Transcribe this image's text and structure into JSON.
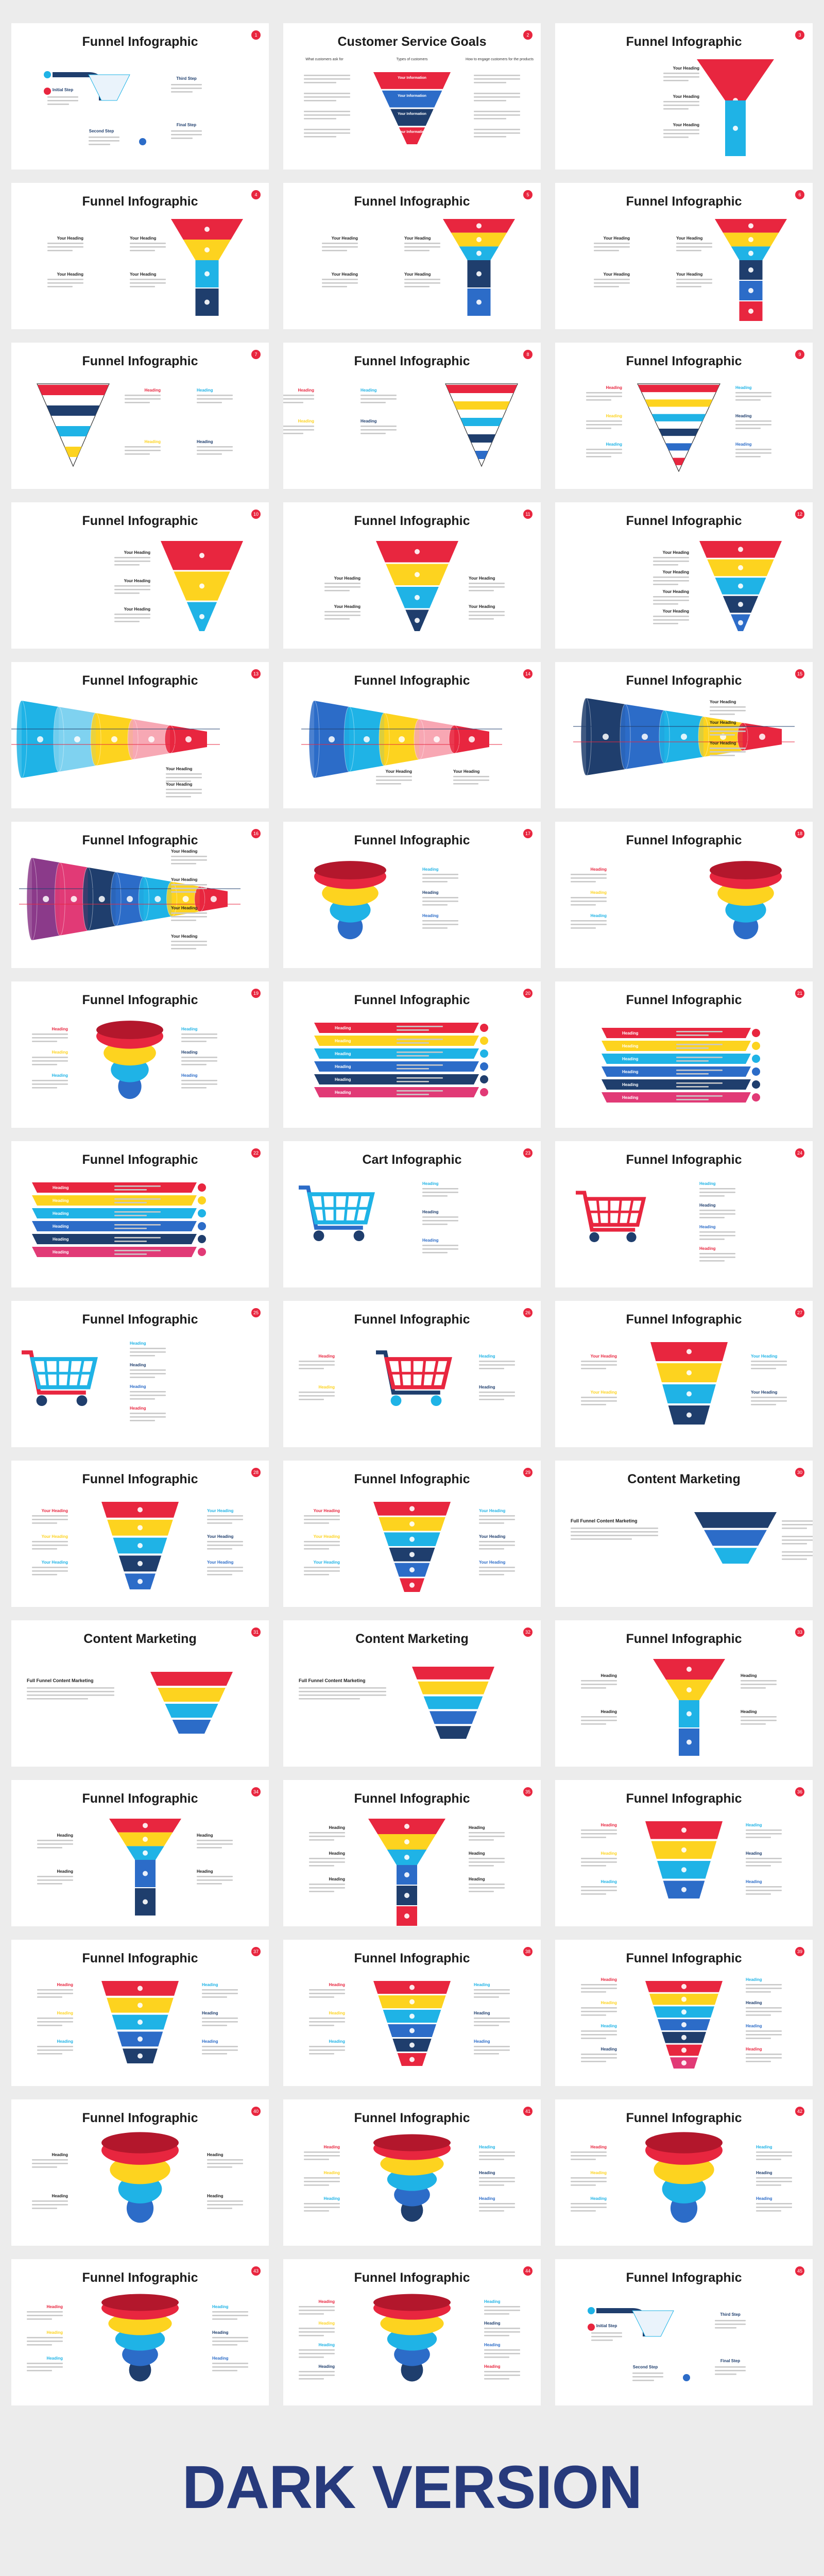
{
  "colors": {
    "red": "#e8263f",
    "yellow": "#fdd31f",
    "cyan": "#1fb3e6",
    "navy": "#1f3e6d",
    "blue": "#2c6cc8",
    "pink": "#e13a76",
    "purple": "#8b3a8a",
    "orange": "#f39b1f",
    "background": "#ececec",
    "banner": "#273a7c"
  },
  "slides": [
    {
      "title": "Funnel Infographic",
      "num": "1"
    },
    {
      "title": "Customer Service Goals",
      "num": "2"
    },
    {
      "title": "Funnel Infographic",
      "num": "3"
    },
    {
      "title": "Funnel Infographic",
      "num": "4"
    },
    {
      "title": "Funnel Infographic",
      "num": "5"
    },
    {
      "title": "Funnel Infographic",
      "num": "6"
    },
    {
      "title": "Funnel Infographic",
      "num": "7"
    },
    {
      "title": "Funnel Infographic",
      "num": "8"
    },
    {
      "title": "Funnel Infographic",
      "num": "9"
    },
    {
      "title": "Funnel Infographic",
      "num": "10"
    },
    {
      "title": "Funnel Infographic",
      "num": "11"
    },
    {
      "title": "Funnel Infographic",
      "num": "12"
    },
    {
      "title": "Funnel Infographic",
      "num": "13"
    },
    {
      "title": "Funnel Infographic",
      "num": "14"
    },
    {
      "title": "Funnel Infographic",
      "num": "15"
    },
    {
      "title": "Funnel Infographic",
      "num": "16"
    },
    {
      "title": "Funnel Infographic",
      "num": "17"
    },
    {
      "title": "Funnel Infographic",
      "num": "18"
    },
    {
      "title": "Funnel Infographic",
      "num": "19"
    },
    {
      "title": "Funnel Infographic",
      "num": "20"
    },
    {
      "title": "Funnel Infographic",
      "num": "21"
    },
    {
      "title": "Funnel Infographic",
      "num": "22"
    },
    {
      "title": "Cart Infographic",
      "num": "23"
    },
    {
      "title": "Funnel Infographic",
      "num": "24"
    },
    {
      "title": "Funnel Infographic",
      "num": "25"
    },
    {
      "title": "Funnel Infographic",
      "num": "26"
    },
    {
      "title": "Funnel Infographic",
      "num": "27"
    },
    {
      "title": "Funnel Infographic",
      "num": "28"
    },
    {
      "title": "Funnel Infographic",
      "num": "29"
    },
    {
      "title": "Content Marketing",
      "num": "30"
    },
    {
      "title": "Content Marketing",
      "num": "31"
    },
    {
      "title": "Content Marketing",
      "num": "32"
    },
    {
      "title": "Funnel Infographic",
      "num": "33"
    },
    {
      "title": "Funnel Infographic",
      "num": "34"
    },
    {
      "title": "Funnel Infographic",
      "num": "35"
    },
    {
      "title": "Funnel Infographic",
      "num": "36"
    },
    {
      "title": "Funnel Infographic",
      "num": "37"
    },
    {
      "title": "Funnel Infographic",
      "num": "38"
    },
    {
      "title": "Funnel Infographic",
      "num": "39"
    },
    {
      "title": "Funnel Infographic",
      "num": "40"
    },
    {
      "title": "Funnel Infographic",
      "num": "41"
    },
    {
      "title": "Funnel Infographic",
      "num": "42"
    },
    {
      "title": "Funnel Infographic",
      "num": "43"
    },
    {
      "title": "Funnel Infographic",
      "num": "44"
    },
    {
      "title": "Funnel Infographic",
      "num": "45"
    }
  ],
  "labels": {
    "your_heading": "Your Heading",
    "heading": "Heading",
    "full_funnel": "Full Funnel Content Marketing",
    "initial_step": "Initial Step",
    "second_step": "Second Step",
    "third_step": "Third Step",
    "final_step": "Final Step",
    "goal_col_1": "What customers ask for",
    "goal_col_2": "Types of customers",
    "goal_col_3": "How to engage customers for the products",
    "goal_tier": "Your Information"
  },
  "banner": "DARK VERSION"
}
